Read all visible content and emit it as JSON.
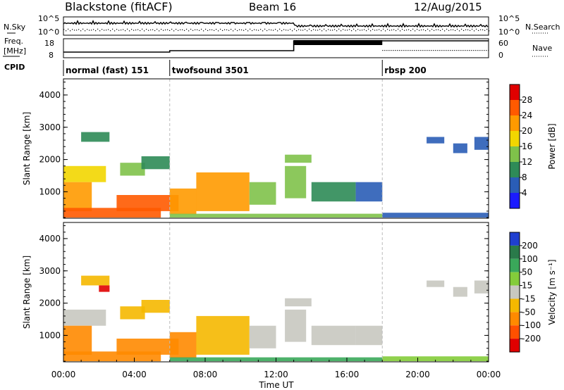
{
  "header": {
    "station": "Blackstone (fitACF)",
    "beam": "Beam 16",
    "date": "12/Aug/2015"
  },
  "summary_panels": {
    "noise_left_label": "N.Sky",
    "noise_right_label": "N.Search",
    "noise_ticks": [
      "10^5",
      "10^0"
    ],
    "freq_label_line1": "Freq.",
    "freq_label_line2": "[MHz]",
    "freq_ticks": [
      "18",
      "8"
    ],
    "nave_label": "Nave",
    "nave_ticks": [
      "60",
      "0"
    ],
    "cpid_label": "CPID"
  },
  "modes": [
    {
      "name": "normal (fast) 151",
      "start_hour": 0
    },
    {
      "name": "twofsound 3501",
      "start_hour": 6
    },
    {
      "name": "rbsp 200",
      "start_hour": 18
    }
  ],
  "x_axis": {
    "label": "Time UT",
    "ticks": [
      "00:00",
      "04:00",
      "08:00",
      "12:00",
      "16:00",
      "20:00",
      "00:00"
    ]
  },
  "chart_data": [
    {
      "type": "heatmap",
      "quantity": "Power",
      "ylabel": "Slant Range [km]",
      "y_ticks": [
        1000,
        2000,
        3000,
        4000
      ],
      "ylim": [
        180,
        4500
      ],
      "xlim": [
        0,
        24
      ],
      "colorbar_label": "Power [dB]",
      "colorbar_ticks": [
        4,
        8,
        12,
        16,
        20,
        24,
        28
      ],
      "colorbar_colors": [
        "#1b1bff",
        "#2a5db6",
        "#2e8b57",
        "#7fc24a",
        "#f2d600",
        "#ff9a00",
        "#ff5a00",
        "#e00000"
      ],
      "regions": [
        {
          "t0": 0.0,
          "t1": 2.4,
          "r0": 1300,
          "r1": 1800,
          "v": 16
        },
        {
          "t0": 0.0,
          "t1": 1.6,
          "r0": 400,
          "r1": 1300,
          "v": 22
        },
        {
          "t0": 0.0,
          "t1": 5.5,
          "r0": 200,
          "r1": 500,
          "v": 26
        },
        {
          "t0": 1.0,
          "t1": 2.6,
          "r0": 2550,
          "r1": 2850,
          "v": 8
        },
        {
          "t0": 3.2,
          "t1": 4.6,
          "r0": 1500,
          "r1": 1900,
          "v": 12
        },
        {
          "t0": 4.4,
          "t1": 6.0,
          "r0": 1700,
          "r1": 2100,
          "v": 8
        },
        {
          "t0": 3.0,
          "t1": 6.5,
          "r0": 400,
          "r1": 900,
          "v": 24
        },
        {
          "t0": 6.0,
          "t1": 7.5,
          "r0": 300,
          "r1": 1100,
          "v": 22
        },
        {
          "t0": 7.5,
          "t1": 10.5,
          "r0": 400,
          "r1": 1600,
          "v": 20
        },
        {
          "t0": 10.5,
          "t1": 12.0,
          "r0": 600,
          "r1": 1300,
          "v": 14
        },
        {
          "t0": 12.5,
          "t1": 13.7,
          "r0": 800,
          "r1": 1800,
          "v": 12
        },
        {
          "t0": 12.5,
          "t1": 14.0,
          "r0": 1900,
          "r1": 2150,
          "v": 12
        },
        {
          "t0": 14.0,
          "t1": 16.5,
          "r0": 700,
          "r1": 1300,
          "v": 8
        },
        {
          "t0": 6.0,
          "t1": 18.0,
          "r0": 200,
          "r1": 320,
          "v": 12
        },
        {
          "t0": 18.0,
          "t1": 24.0,
          "r0": 200,
          "r1": 350,
          "v": 6
        },
        {
          "t0": 16.5,
          "t1": 18.0,
          "r0": 700,
          "r1": 1300,
          "v": 4
        },
        {
          "t0": 20.5,
          "t1": 21.5,
          "r0": 2500,
          "r1": 2700,
          "v": 6
        },
        {
          "t0": 22.0,
          "t1": 22.8,
          "r0": 2200,
          "r1": 2500,
          "v": 5
        },
        {
          "t0": 23.2,
          "t1": 24.0,
          "r0": 2300,
          "r1": 2700,
          "v": 6
        }
      ]
    },
    {
      "type": "heatmap",
      "quantity": "Velocity",
      "ylabel": "Slant Range [km]",
      "y_ticks": [
        1000,
        2000,
        3000,
        4000
      ],
      "ylim": [
        180,
        4500
      ],
      "xlim": [
        0,
        24
      ],
      "colorbar_label": "Velocity [m s⁻¹]",
      "colorbar_ticks": [
        "200",
        "100",
        "50",
        "15",
        "-15",
        "-50",
        "-100",
        "-200"
      ],
      "colorbar_colors": [
        "#1f3fd0",
        "#2a7a4a",
        "#3aa85a",
        "#84cc3a",
        "#c8c8c0",
        "#f5b800",
        "#ff8a00",
        "#ff5000",
        "#e00000"
      ],
      "regions": [
        {
          "t0": 0.0,
          "t1": 2.4,
          "r0": 1300,
          "r1": 1800,
          "v": 0
        },
        {
          "t0": 0.0,
          "t1": 1.6,
          "r0": 400,
          "r1": 1300,
          "v": -60
        },
        {
          "t0": 0.0,
          "t1": 5.5,
          "r0": 200,
          "r1": 500,
          "v": -90
        },
        {
          "t0": 1.0,
          "t1": 2.6,
          "r0": 2550,
          "r1": 2850,
          "v": -50
        },
        {
          "t0": 2.0,
          "t1": 2.6,
          "r0": 2350,
          "r1": 2550,
          "v": -220
        },
        {
          "t0": 3.2,
          "t1": 4.6,
          "r0": 1500,
          "r1": 1900,
          "v": -40
        },
        {
          "t0": 4.4,
          "t1": 6.0,
          "r0": 1700,
          "r1": 2100,
          "v": -30
        },
        {
          "t0": 3.0,
          "t1": 6.5,
          "r0": 400,
          "r1": 900,
          "v": -70
        },
        {
          "t0": 6.0,
          "t1": 7.5,
          "r0": 300,
          "r1": 1100,
          "v": -60
        },
        {
          "t0": 7.5,
          "t1": 10.5,
          "r0": 400,
          "r1": 1600,
          "v": -45
        },
        {
          "t0": 10.5,
          "t1": 12.0,
          "r0": 600,
          "r1": 1300,
          "v": 5
        },
        {
          "t0": 12.5,
          "t1": 13.7,
          "r0": 800,
          "r1": 1800,
          "v": 0
        },
        {
          "t0": 12.5,
          "t1": 14.0,
          "r0": 1900,
          "r1": 2150,
          "v": 0
        },
        {
          "t0": 14.0,
          "t1": 16.5,
          "r0": 700,
          "r1": 1300,
          "v": 0
        },
        {
          "t0": 6.0,
          "t1": 18.0,
          "r0": 200,
          "r1": 320,
          "v": 60
        },
        {
          "t0": 18.0,
          "t1": 24.0,
          "r0": 200,
          "r1": 350,
          "v": 30
        },
        {
          "t0": 16.5,
          "t1": 18.0,
          "r0": 700,
          "r1": 1300,
          "v": 0
        },
        {
          "t0": 20.5,
          "t1": 21.5,
          "r0": 2500,
          "r1": 2700,
          "v": 0
        },
        {
          "t0": 22.0,
          "t1": 22.8,
          "r0": 2200,
          "r1": 2500,
          "v": 0
        },
        {
          "t0": 23.2,
          "t1": 24.0,
          "r0": 2300,
          "r1": 2700,
          "v": 0
        }
      ]
    }
  ]
}
